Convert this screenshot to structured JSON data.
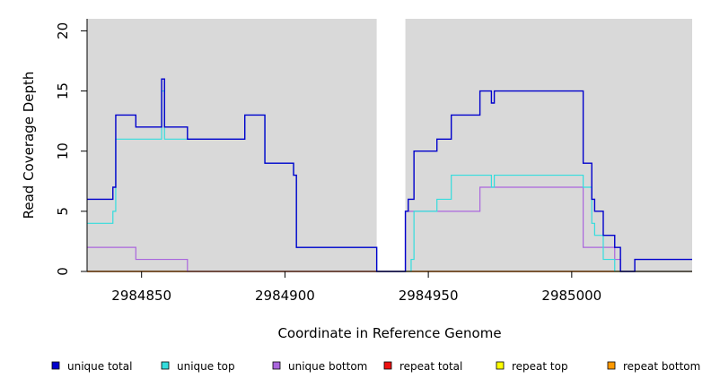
{
  "chart_data": {
    "type": "line",
    "title": "",
    "xlabel": "Coordinate in Reference Genome",
    "ylabel": "Read Coverage Depth",
    "xlim": [
      2984831,
      2985042
    ],
    "ylim": [
      0,
      21
    ],
    "x_ticks": [
      2984850,
      2984900,
      2984950,
      2985000
    ],
    "y_ticks": [
      0,
      5,
      10,
      15,
      20
    ],
    "grid": false,
    "background": "#d9d9d9",
    "gap_region": [
      2984932,
      2984942
    ],
    "legend_position": "bottom",
    "series": [
      {
        "name": "unique total",
        "color": "#0000cc",
        "points": [
          [
            2984831,
            6
          ],
          [
            2984840,
            6
          ],
          [
            2984840,
            7
          ],
          [
            2984841,
            7
          ],
          [
            2984841,
            13
          ],
          [
            2984848,
            13
          ],
          [
            2984848,
            12
          ],
          [
            2984857,
            12
          ],
          [
            2984857,
            16
          ],
          [
            2984858,
            16
          ],
          [
            2984858,
            12
          ],
          [
            2984866,
            12
          ],
          [
            2984866,
            11
          ],
          [
            2984886,
            11
          ],
          [
            2984886,
            13
          ],
          [
            2984893,
            13
          ],
          [
            2984893,
            9
          ],
          [
            2984903,
            9
          ],
          [
            2984903,
            8
          ],
          [
            2984904,
            8
          ],
          [
            2984904,
            2
          ],
          [
            2984932,
            2
          ],
          [
            2984932,
            0
          ],
          [
            2984942,
            0
          ],
          [
            2984942,
            5
          ],
          [
            2984943,
            5
          ],
          [
            2984943,
            6
          ],
          [
            2984945,
            6
          ],
          [
            2984945,
            10
          ],
          [
            2984953,
            10
          ],
          [
            2984953,
            11
          ],
          [
            2984958,
            11
          ],
          [
            2984958,
            13
          ],
          [
            2984968,
            13
          ],
          [
            2984968,
            15
          ],
          [
            2984972,
            15
          ],
          [
            2984972,
            14
          ],
          [
            2984973,
            14
          ],
          [
            2984973,
            15
          ],
          [
            2985004,
            15
          ],
          [
            2985004,
            9
          ],
          [
            2985007,
            9
          ],
          [
            2985007,
            6
          ],
          [
            2985008,
            6
          ],
          [
            2985008,
            5
          ],
          [
            2985011,
            5
          ],
          [
            2985011,
            3
          ],
          [
            2985015,
            3
          ],
          [
            2985015,
            2
          ],
          [
            2985017,
            2
          ],
          [
            2985017,
            0
          ],
          [
            2985022,
            0
          ],
          [
            2985022,
            1
          ],
          [
            2985042,
            1
          ]
        ]
      },
      {
        "name": "unique top",
        "color": "#33dddd",
        "points": [
          [
            2984831,
            4
          ],
          [
            2984840,
            4
          ],
          [
            2984840,
            5
          ],
          [
            2984841,
            5
          ],
          [
            2984841,
            11
          ],
          [
            2984857,
            11
          ],
          [
            2984857,
            15
          ],
          [
            2984858,
            15
          ],
          [
            2984858,
            11
          ],
          [
            2984886,
            11
          ],
          [
            2984886,
            13
          ],
          [
            2984893,
            13
          ],
          [
            2984893,
            9
          ],
          [
            2984903,
            9
          ],
          [
            2984903,
            8
          ],
          [
            2984904,
            8
          ],
          [
            2984904,
            2
          ],
          [
            2984932,
            2
          ],
          [
            2984932,
            0
          ],
          [
            2984944,
            0
          ],
          [
            2984944,
            1
          ],
          [
            2984945,
            1
          ],
          [
            2984945,
            5
          ],
          [
            2984953,
            5
          ],
          [
            2984953,
            6
          ],
          [
            2984958,
            6
          ],
          [
            2984958,
            8
          ],
          [
            2984972,
            8
          ],
          [
            2984972,
            7
          ],
          [
            2984973,
            7
          ],
          [
            2984973,
            8
          ],
          [
            2985004,
            8
          ],
          [
            2985004,
            7
          ],
          [
            2985007,
            7
          ],
          [
            2985007,
            4
          ],
          [
            2985008,
            4
          ],
          [
            2985008,
            3
          ],
          [
            2985011,
            3
          ],
          [
            2985011,
            1
          ],
          [
            2985015,
            1
          ],
          [
            2985015,
            0
          ],
          [
            2985042,
            0
          ]
        ]
      },
      {
        "name": "unique bottom",
        "color": "#aa66dd",
        "points": [
          [
            2984831,
            2
          ],
          [
            2984848,
            2
          ],
          [
            2984848,
            1
          ],
          [
            2984866,
            1
          ],
          [
            2984866,
            0
          ],
          [
            2984942,
            0
          ],
          [
            2984942,
            5
          ],
          [
            2984968,
            5
          ],
          [
            2984968,
            7
          ],
          [
            2985004,
            7
          ],
          [
            2985004,
            2
          ],
          [
            2985015,
            2
          ],
          [
            2985015,
            1
          ],
          [
            2985017,
            1
          ],
          [
            2985017,
            0
          ],
          [
            2985042,
            0
          ]
        ]
      },
      {
        "name": "repeat total",
        "color": "#ee1111",
        "points": [
          [
            2984831,
            0
          ],
          [
            2985042,
            0
          ]
        ]
      },
      {
        "name": "repeat top",
        "color": "#ffff00",
        "points": [
          [
            2984831,
            0
          ],
          [
            2985042,
            0
          ]
        ]
      },
      {
        "name": "repeat bottom",
        "color": "#ff9900",
        "points": [
          [
            2984831,
            0
          ],
          [
            2985042,
            0
          ]
        ]
      }
    ]
  }
}
